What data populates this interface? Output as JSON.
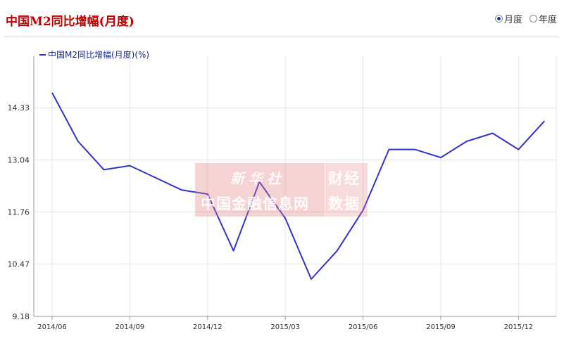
{
  "header": {
    "title": "中国M2同比增幅(月度)",
    "options": [
      {
        "label": "月度",
        "checked": true
      },
      {
        "label": "年度",
        "checked": false
      }
    ]
  },
  "watermark": {
    "seal": "新华社",
    "left": "中国金融信息网",
    "right_top": "财经",
    "right_bottom": "数据"
  },
  "colors": {
    "line": "#3333cc",
    "grid": "#e0e0e0",
    "title": "#c00000"
  },
  "chart_data": {
    "type": "line",
    "legend": "中国M2同比增幅(月度)(%)",
    "x": [
      "2014/06",
      "2014/07",
      "2014/08",
      "2014/09",
      "2014/10",
      "2014/11",
      "2014/12",
      "2015/01",
      "2015/02",
      "2015/03",
      "2015/04",
      "2015/05",
      "2015/06",
      "2015/07",
      "2015/08",
      "2015/09",
      "2015/10",
      "2015/11",
      "2015/12",
      "2016/01"
    ],
    "series": [
      {
        "name": "中国M2同比增幅(月度)(%)",
        "values": [
          14.7,
          13.5,
          12.8,
          12.9,
          12.6,
          12.3,
          12.2,
          10.8,
          12.5,
          11.6,
          10.1,
          10.8,
          11.8,
          13.3,
          13.3,
          13.1,
          13.5,
          13.7,
          13.3,
          14.0
        ]
      }
    ],
    "yticks": [
      9.18,
      10.47,
      11.76,
      13.04,
      14.33
    ],
    "ylim": [
      9.18,
      15.6
    ],
    "xticks": [
      "2014/06",
      "2014/09",
      "2014/12",
      "2015/03",
      "2015/06",
      "2015/09",
      "2015/12"
    ],
    "grid": true,
    "legend_position": "top-left"
  }
}
